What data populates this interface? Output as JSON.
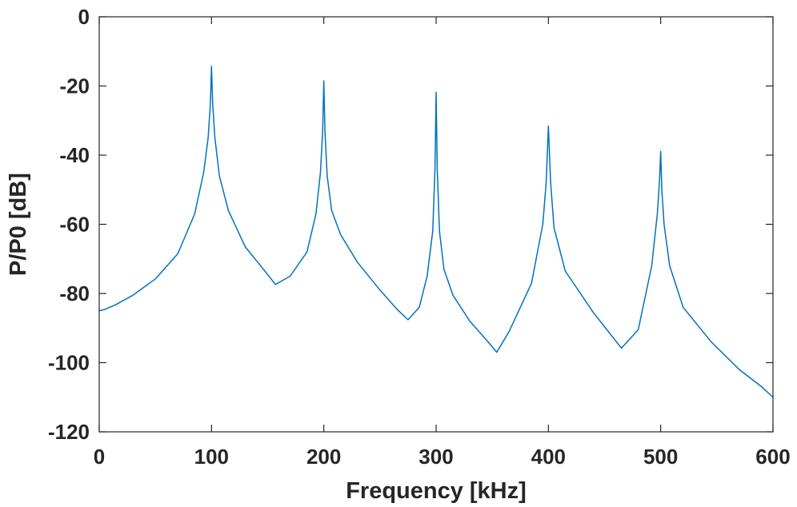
{
  "chart_data": {
    "type": "line",
    "title": "",
    "xlabel": "Frequency [kHz]",
    "ylabel": "P/P0 [dB]",
    "xlim": [
      0,
      600
    ],
    "ylim": [
      -120,
      0
    ],
    "xticks": [
      "0",
      "100",
      "200",
      "300",
      "400",
      "500",
      "600"
    ],
    "yticks": [
      "0",
      "-20",
      "-40",
      "-60",
      "-80",
      "-100",
      "-120"
    ],
    "grid": false,
    "box": true,
    "line_color": "#0072BD",
    "series": [
      {
        "resonances": [
          {
            "f": 100,
            "peak": -14.3
          },
          {
            "f": 200,
            "peak": -18.5
          },
          {
            "f": 300,
            "peak": -21.8
          },
          {
            "f": 400,
            "peak": -31.6
          },
          {
            "f": 500,
            "peak": -38.9
          }
        ],
        "troughs": [
          {
            "f": 157,
            "value": -77.4
          },
          {
            "f": 275,
            "value": -87.6
          },
          {
            "f": 354,
            "value": -97.0
          },
          {
            "f": 465,
            "value": -95.8
          }
        ],
        "x": [
          0,
          5,
          15,
          30,
          50,
          70,
          85,
          93,
          97,
          99,
          100,
          101,
          103,
          107,
          115,
          130,
          145,
          157,
          170,
          185,
          193,
          197,
          199,
          200,
          201,
          203,
          207,
          215,
          230,
          250,
          265,
          275,
          285,
          292,
          297,
          299,
          300,
          301,
          303,
          307,
          315,
          330,
          345,
          354,
          365,
          385,
          395,
          398,
          400,
          402,
          405,
          415,
          440,
          465,
          480,
          492,
          497,
          499,
          500,
          501,
          503,
          508,
          520,
          545,
          570,
          590,
          600
        ],
        "y": [
          -85,
          -84.6,
          -83.2,
          -80.5,
          -75.8,
          -68.5,
          -57,
          -45,
          -35,
          -25,
          -14.3,
          -25,
          -35,
          -46,
          -56,
          -66.5,
          -72.5,
          -77.4,
          -75,
          -68,
          -57,
          -45,
          -33,
          -18.5,
          -33,
          -46,
          -56,
          -63,
          -71,
          -79,
          -84.5,
          -87.6,
          -84,
          -75,
          -62,
          -44,
          -21.8,
          -44,
          -62,
          -73,
          -80.5,
          -88,
          -93.5,
          -97,
          -91,
          -77,
          -60,
          -48,
          -31.6,
          -48,
          -61,
          -73.5,
          -85.5,
          -95.8,
          -90.5,
          -72,
          -57,
          -47,
          -38.9,
          -50,
          -60,
          -72,
          -84,
          -94,
          -102,
          -107,
          -110
        ]
      }
    ]
  }
}
